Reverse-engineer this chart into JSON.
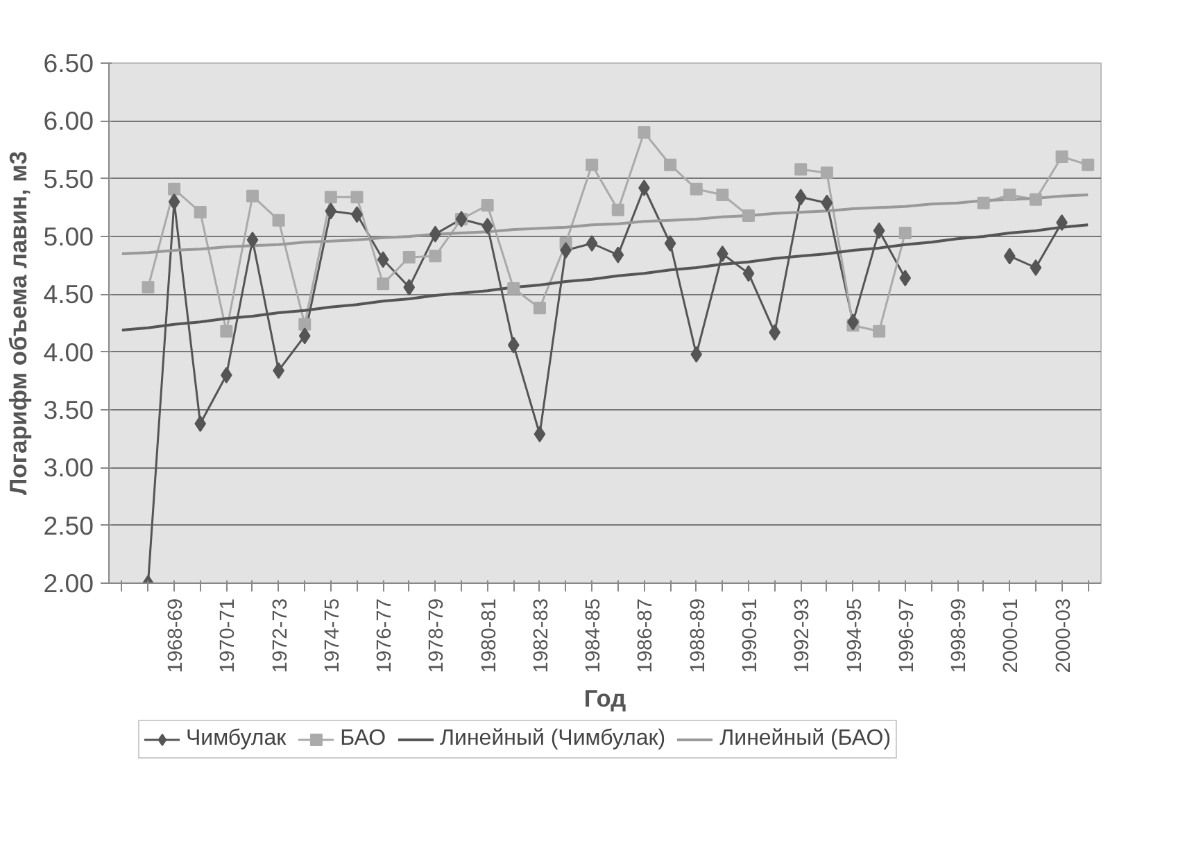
{
  "chart_data": {
    "type": "line",
    "xlabel": "Год",
    "ylabel": "Логарифм объема лавин, м3",
    "categories": [
      null,
      null,
      "1968-69",
      null,
      "1970-71",
      null,
      "1972-73",
      null,
      "1974-75",
      null,
      "1976-77",
      null,
      "1978-79",
      null,
      "1980-81",
      null,
      "1982-83",
      null,
      "1984-85",
      null,
      "1986-87",
      null,
      "1988-89",
      null,
      "1990-91",
      null,
      "1992-93",
      null,
      "1994-95",
      null,
      "1996-97",
      null,
      "1998-99",
      null,
      "2000-01",
      null,
      "2000-03",
      null
    ],
    "series": [
      {
        "name": "Чимбулак",
        "color": "#555555",
        "marker": "diamond",
        "values": [
          null,
          2.0,
          5.3,
          3.38,
          3.8,
          4.97,
          3.84,
          4.14,
          5.22,
          5.19,
          4.8,
          4.56,
          5.02,
          5.15,
          5.09,
          4.06,
          3.29,
          4.88,
          4.94,
          4.84,
          5.42,
          4.94,
          3.98,
          4.85,
          4.68,
          4.17,
          5.34,
          5.29,
          4.26,
          5.05,
          4.64,
          null,
          null,
          null,
          4.83,
          4.73,
          5.12,
          null
        ]
      },
      {
        "name": "БАО",
        "color": "#aaaaaa",
        "marker": "square",
        "values": [
          null,
          4.56,
          5.41,
          5.21,
          4.18,
          5.35,
          5.14,
          4.24,
          5.34,
          5.34,
          4.59,
          4.82,
          4.83,
          5.15,
          5.27,
          4.55,
          4.38,
          4.94,
          5.62,
          5.23,
          5.9,
          5.62,
          5.41,
          5.36,
          5.18,
          null,
          5.58,
          5.55,
          4.23,
          4.18,
          5.03,
          null,
          null,
          5.29,
          5.36,
          5.32,
          5.69,
          5.62
        ]
      },
      {
        "name": "Линейный (Чимбулак)",
        "color": "#555555",
        "marker": "none",
        "values": [
          4.19,
          4.21,
          4.24,
          4.26,
          4.29,
          4.31,
          4.34,
          4.36,
          4.39,
          4.41,
          4.44,
          4.46,
          4.49,
          4.51,
          4.53,
          4.56,
          4.58,
          4.61,
          4.63,
          4.66,
          4.68,
          4.71,
          4.73,
          4.76,
          4.78,
          4.81,
          4.83,
          4.85,
          4.88,
          4.9,
          4.93,
          4.95,
          4.98,
          5.0,
          5.03,
          5.05,
          5.08,
          5.1
        ]
      },
      {
        "name": "Линейный (БАО)",
        "color": "#999999",
        "marker": "none",
        "values": [
          4.85,
          4.86,
          4.88,
          4.89,
          4.91,
          4.92,
          4.93,
          4.95,
          4.96,
          4.97,
          4.99,
          5.0,
          5.02,
          5.03,
          5.04,
          5.06,
          5.07,
          5.08,
          5.1,
          5.11,
          5.13,
          5.14,
          5.15,
          5.17,
          5.18,
          5.2,
          5.21,
          5.22,
          5.24,
          5.25,
          5.26,
          5.28,
          5.29,
          5.31,
          5.32,
          5.33,
          5.35,
          5.36
        ]
      }
    ],
    "ylim": [
      2.0,
      6.5
    ],
    "yticks": [
      {
        "value": 2.0,
        "label": "2.00"
      },
      {
        "value": 2.5,
        "label": "2.50"
      },
      {
        "value": 3.0,
        "label": "3.00"
      },
      {
        "value": 3.5,
        "label": "3.50"
      },
      {
        "value": 4.0,
        "label": "4.00"
      },
      {
        "value": 4.5,
        "label": "4.50"
      },
      {
        "value": 5.0,
        "label": "5.00"
      },
      {
        "value": 5.5,
        "label": "5.50"
      },
      {
        "value": 6.0,
        "label": "6.00"
      },
      {
        "value": 6.5,
        "label": "6.50"
      }
    ],
    "grid": "y",
    "legend": "bottom",
    "line_style": "solid"
  }
}
